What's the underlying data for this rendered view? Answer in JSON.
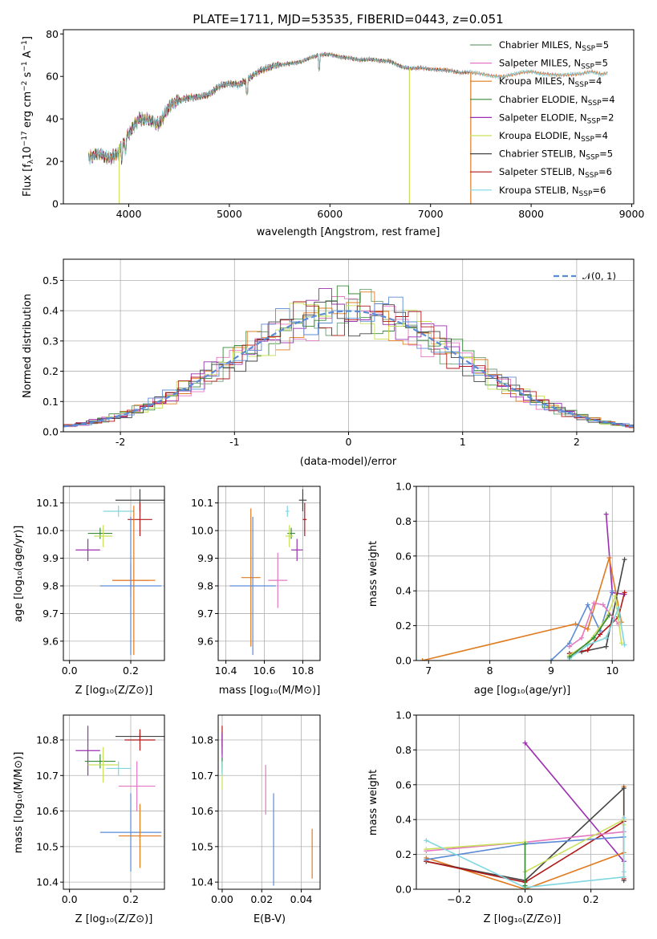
{
  "chart_data": [
    {
      "type": "line",
      "title": "PLATE=1711, MJD=53535, FIBERID=0443, z=0.051",
      "xlabel": "wavelength [Angstrom, rest frame]",
      "ylabel": "Flux [f_λ10^-17 erg cm^-2 s^-1 A^-1]",
      "xlim": [
        3350,
        9020
      ],
      "ylim": [
        0,
        82
      ],
      "xticks": [
        4000,
        5000,
        6000,
        7000,
        8000,
        9000
      ],
      "yticks": [
        0,
        20,
        40,
        60,
        80
      ],
      "legend_position": "upper-right",
      "series": [
        {
          "name": "Chabrier MILES, N_SSP=5",
          "color": "#6fa078",
          "end": 8760
        },
        {
          "name": "Salpeter MILES, N_SSP=5",
          "color": "#e377c2",
          "end": 8760
        },
        {
          "name": "Kroupa MILES, N_SSP=4",
          "color": "#e07b1f",
          "end": 8760
        },
        {
          "name": "Chabrier ELODIE, N_SSP=4",
          "color": "#3a8a3a",
          "end": 6790
        },
        {
          "name": "Salpeter ELODIE, N_SSP=2",
          "color": "#9b2fb0",
          "end": 6790
        },
        {
          "name": "Kroupa ELODIE, N_SSP=4",
          "color": "#c8e05a",
          "end": 6790
        },
        {
          "name": "Chabrier STELIB, N_SSP=5",
          "color": "#444444",
          "end": 7400
        },
        {
          "name": "Salpeter STELIB, N_SSP=6",
          "color": "#b01818",
          "end": 7400
        },
        {
          "name": "Kroupa STELIB, N_SSP=6",
          "color": "#7fd6e0",
          "end": 8760
        }
      ],
      "data_note_points": [
        [
          3600,
          22
        ],
        [
          3700,
          25
        ],
        [
          3800,
          22
        ],
        [
          3900,
          23
        ],
        [
          3950,
          28
        ],
        [
          4000,
          32
        ],
        [
          4100,
          40
        ],
        [
          4200,
          41
        ],
        [
          4300,
          38
        ],
        [
          4400,
          45
        ],
        [
          4500,
          48
        ],
        [
          4600,
          50
        ],
        [
          4700,
          51
        ],
        [
          4800,
          52
        ],
        [
          4900,
          55
        ],
        [
          5000,
          56
        ],
        [
          5100,
          56
        ],
        [
          5200,
          60
        ],
        [
          5300,
          63
        ],
        [
          5400,
          64
        ],
        [
          5500,
          65
        ],
        [
          5600,
          66
        ],
        [
          5700,
          67
        ],
        [
          5800,
          69
        ],
        [
          5900,
          70
        ],
        [
          6000,
          70
        ],
        [
          6100,
          69
        ],
        [
          6200,
          69
        ],
        [
          6300,
          68
        ],
        [
          6400,
          68
        ],
        [
          6500,
          67
        ],
        [
          6600,
          67
        ],
        [
          6700,
          65
        ],
        [
          6800,
          64
        ],
        [
          6900,
          64
        ],
        [
          7000,
          63
        ],
        [
          7100,
          63
        ],
        [
          7200,
          63
        ],
        [
          7300,
          62
        ],
        [
          7400,
          62
        ],
        [
          7500,
          61
        ],
        [
          7600,
          60
        ],
        [
          7700,
          60
        ],
        [
          7800,
          61
        ],
        [
          7900,
          62
        ],
        [
          8000,
          62
        ],
        [
          8100,
          61
        ],
        [
          8200,
          61
        ],
        [
          8300,
          61
        ],
        [
          8400,
          61
        ],
        [
          8500,
          61
        ],
        [
          8600,
          62
        ],
        [
          8700,
          61
        ],
        [
          8760,
          62
        ]
      ]
    },
    {
      "type": "bar",
      "xlabel": "(data-model)/error",
      "ylabel": "Normed distribution",
      "xlim": [
        -2.5,
        2.5
      ],
      "ylim": [
        0,
        0.57
      ],
      "xticks": [
        -2,
        -1,
        0,
        1,
        2
      ],
      "yticks": [
        0.0,
        0.1,
        0.2,
        0.3,
        0.4,
        0.5
      ],
      "curve_label": "𝒩(0, 1)",
      "curve_color": "#5b8bd6"
    },
    {
      "type": "scatter",
      "xlabel": "Z [log10(Z/Z⊙)]",
      "ylabel": "age [log10(age/yr)]",
      "xlim": [
        -0.02,
        0.31
      ],
      "ylim": [
        9.53,
        10.16
      ],
      "xticks": [
        0.0,
        0.2
      ],
      "yticks": [
        9.6,
        9.7,
        9.8,
        9.9,
        10.0,
        10.1
      ],
      "points": [
        {
          "x": 0.23,
          "y": 10.11,
          "xerr": 0.08,
          "yerr": 0.04,
          "color": "#444444"
        },
        {
          "x": 0.23,
          "y": 10.04,
          "xerr": 0.04,
          "yerr": 0.06,
          "color": "#b01818"
        },
        {
          "x": 0.16,
          "y": 10.07,
          "xerr": 0.05,
          "yerr": 0.02,
          "color": "#7fd6e0"
        },
        {
          "x": 0.1,
          "y": 9.99,
          "xerr": 0.04,
          "yerr": 0.02,
          "color": "#3a8a3a"
        },
        {
          "x": 0.11,
          "y": 9.98,
          "xerr": 0.03,
          "yerr": 0.04,
          "color": "#c8e05a"
        },
        {
          "x": 0.06,
          "y": 9.93,
          "xerr": 0.04,
          "yerr": 0.04,
          "color": "#9b2fb0"
        },
        {
          "x": 0.2,
          "y": 9.82,
          "xerr": 0.06,
          "yerr": 0.06,
          "color": "#e377c2"
        },
        {
          "x": 0.21,
          "y": 9.82,
          "xerr": 0.07,
          "yerr": 0.27,
          "color": "#e07b1f"
        },
        {
          "x": 0.2,
          "y": 9.8,
          "xerr": 0.1,
          "yerr": 0.25,
          "color": "#5b8bd6"
        }
      ]
    },
    {
      "type": "scatter",
      "xlabel": "mass [log10(M/M⊙)]",
      "ylabel": "",
      "xlim": [
        10.36,
        10.89
      ],
      "ylim": [
        9.53,
        10.16
      ],
      "xticks": [
        10.4,
        10.6,
        10.8
      ],
      "yticks": [
        9.6,
        9.7,
        9.8,
        9.9,
        10.0,
        10.1
      ],
      "points": [
        {
          "x": 10.8,
          "y": 10.11,
          "xerr": 0.02,
          "yerr": 0.04,
          "color": "#444444"
        },
        {
          "x": 10.81,
          "y": 10.04,
          "xerr": 0.01,
          "yerr": 0.06,
          "color": "#b01818"
        },
        {
          "x": 10.72,
          "y": 10.07,
          "xerr": 0.01,
          "yerr": 0.02,
          "color": "#7fd6e0"
        },
        {
          "x": 10.74,
          "y": 9.99,
          "xerr": 0.02,
          "yerr": 0.02,
          "color": "#3a8a3a"
        },
        {
          "x": 10.73,
          "y": 9.98,
          "xerr": 0.02,
          "yerr": 0.04,
          "color": "#c8e05a"
        },
        {
          "x": 10.77,
          "y": 9.93,
          "xerr": 0.03,
          "yerr": 0.04,
          "color": "#9b2fb0"
        },
        {
          "x": 10.67,
          "y": 9.82,
          "xerr": 0.05,
          "yerr": 0.1,
          "color": "#e377c2"
        },
        {
          "x": 10.53,
          "y": 9.83,
          "xerr": 0.05,
          "yerr": 0.25,
          "color": "#e07b1f"
        },
        {
          "x": 10.54,
          "y": 9.8,
          "xerr": 0.12,
          "yerr": 0.25,
          "color": "#5b8bd6"
        }
      ]
    },
    {
      "type": "line",
      "xlabel": "age [log10(age/yr)]",
      "ylabel": "mass weight",
      "xlim": [
        6.8,
        10.35
      ],
      "ylim": [
        0,
        1.0
      ],
      "xticks": [
        7,
        8,
        9,
        10
      ],
      "yticks": [
        0.0,
        0.2,
        0.4,
        0.6,
        0.8,
        1.0
      ],
      "series": [
        {
          "color": "#9b2fb0",
          "x": [
            9.9,
            10.0,
            10.2
          ],
          "y": [
            0.84,
            0.39,
            0.38
          ]
        },
        {
          "color": "#e07b1f",
          "x": [
            6.9,
            9.4,
            9.6,
            9.95,
            10.15
          ],
          "y": [
            0.0,
            0.21,
            0.18,
            0.59,
            0.22
          ]
        },
        {
          "color": "#444444",
          "x": [
            9.3,
            9.5,
            9.9,
            10.2
          ],
          "y": [
            0.04,
            0.05,
            0.08,
            0.58
          ]
        },
        {
          "color": "#b01818",
          "x": [
            9.3,
            9.6,
            9.8,
            10.1,
            10.2
          ],
          "y": [
            0.04,
            0.06,
            0.15,
            0.25,
            0.39
          ]
        },
        {
          "color": "#5b8bd6",
          "x": [
            9.0,
            9.3,
            9.6,
            9.8,
            10.0
          ],
          "y": [
            0.0,
            0.1,
            0.32,
            0.17,
            0.4
          ]
        },
        {
          "color": "#e377c2",
          "x": [
            9.3,
            9.5,
            9.7,
            9.85,
            10.1
          ],
          "y": [
            0.08,
            0.13,
            0.33,
            0.32,
            0.21
          ]
        },
        {
          "color": "#c8e05a",
          "x": [
            9.3,
            9.6,
            9.9,
            10.05,
            10.15
          ],
          "y": [
            0.03,
            0.1,
            0.24,
            0.37,
            0.1
          ]
        },
        {
          "color": "#7fd6e0",
          "x": [
            9.3,
            9.6,
            9.9,
            10.1,
            10.2
          ],
          "y": [
            0.01,
            0.09,
            0.13,
            0.3,
            0.09
          ]
        },
        {
          "color": "#3a8a3a",
          "x": [
            9.3,
            9.7,
            9.95
          ],
          "y": [
            0.02,
            0.13,
            0.26
          ]
        }
      ]
    },
    {
      "type": "scatter",
      "xlabel": "Z [log10(Z/Z⊙)]",
      "ylabel": "mass [log10(M/M⊙)]",
      "xlim": [
        -0.02,
        0.31
      ],
      "ylim": [
        10.38,
        10.87
      ],
      "xticks": [
        0.0,
        0.2
      ],
      "yticks": [
        10.4,
        10.5,
        10.6,
        10.7,
        10.8
      ],
      "points": [
        {
          "x": 0.23,
          "y": 10.81,
          "xerr": 0.08,
          "yerr": 0.01,
          "color": "#444444"
        },
        {
          "x": 0.23,
          "y": 10.8,
          "xerr": 0.05,
          "yerr": 0.03,
          "color": "#b01818"
        },
        {
          "x": 0.06,
          "y": 10.77,
          "xerr": 0.04,
          "yerr": 0.07,
          "color": "#9b2fb0"
        },
        {
          "x": 0.1,
          "y": 10.74,
          "xerr": 0.05,
          "yerr": 0.02,
          "color": "#3a8a3a"
        },
        {
          "x": 0.16,
          "y": 10.72,
          "xerr": 0.04,
          "yerr": 0.02,
          "color": "#7fd6e0"
        },
        {
          "x": 0.11,
          "y": 10.73,
          "xerr": 0.05,
          "yerr": 0.05,
          "color": "#c8e05a"
        },
        {
          "x": 0.22,
          "y": 10.67,
          "xerr": 0.06,
          "yerr": 0.07,
          "color": "#e377c2"
        },
        {
          "x": 0.2,
          "y": 10.54,
          "xerr": 0.1,
          "yerr": 0.11,
          "color": "#5b8bd6"
        },
        {
          "x": 0.23,
          "y": 10.53,
          "xerr": 0.07,
          "yerr": 0.09,
          "color": "#e07b1f"
        }
      ]
    },
    {
      "type": "scatter",
      "xlabel": "E(B-V)",
      "ylabel": "",
      "xlim": [
        -0.002,
        0.0495
      ],
      "ylim": [
        10.38,
        10.87
      ],
      "xticks": [
        0.0,
        0.02,
        0.04
      ],
      "yticks": [
        10.4,
        10.5,
        10.6,
        10.7,
        10.8
      ],
      "points": [
        {
          "x": 0.0,
          "y": 10.81,
          "yerr": 0.03,
          "color": "#b01818"
        },
        {
          "x": 0.0,
          "y": 10.79,
          "yerr": 0.03,
          "color": "#444444"
        },
        {
          "x": 0.0,
          "y": 10.77,
          "yerr": 0.05,
          "color": "#9b2fb0"
        },
        {
          "x": 0.0,
          "y": 10.73,
          "yerr": 0.02,
          "color": "#3a8a3a"
        },
        {
          "x": 0.0,
          "y": 10.7,
          "yerr": 0.04,
          "color": "#c8e05a"
        },
        {
          "x": 0.0,
          "y": 10.72,
          "yerr": 0.02,
          "color": "#7fd6e0"
        },
        {
          "x": 0.022,
          "y": 10.66,
          "yerr": 0.07,
          "color": "#e377c2"
        },
        {
          "x": 0.026,
          "y": 10.52,
          "yerr": 0.13,
          "color": "#5b8bd6"
        },
        {
          "x": 0.0455,
          "y": 10.48,
          "yerr": 0.07,
          "color": "#e07b1f"
        }
      ]
    },
    {
      "type": "line",
      "xlabel": "Z [log10(Z/Z⊙)]",
      "ylabel": "mass weight",
      "xlim": [
        -0.33,
        0.33
      ],
      "ylim": [
        0,
        1.0
      ],
      "xticks": [
        -0.2,
        0.0,
        0.2
      ],
      "yticks": [
        0.0,
        0.2,
        0.4,
        0.6,
        0.8,
        1.0
      ],
      "series": [
        {
          "color": "#9b2fb0",
          "x": [
            0.0,
            0.3
          ],
          "y": [
            0.84,
            0.16
          ]
        },
        {
          "color": "#e07b1f",
          "x": [
            -0.3,
            0.0,
            0.3,
            0.3
          ],
          "y": [
            0.18,
            0.0,
            0.21,
            0.59
          ]
        },
        {
          "color": "#444444",
          "x": [
            -0.3,
            0.0,
            0.3,
            0.3
          ],
          "y": [
            0.16,
            0.05,
            0.58,
            0.05
          ]
        },
        {
          "color": "#b01818",
          "x": [
            -0.3,
            0.0,
            0.3,
            0.3
          ],
          "y": [
            0.16,
            0.04,
            0.39,
            0.06
          ]
        },
        {
          "color": "#5b8bd6",
          "x": [
            -0.3,
            0.0,
            0.3
          ],
          "y": [
            0.17,
            0.26,
            0.3
          ]
        },
        {
          "color": "#e377c2",
          "x": [
            -0.3,
            0.0,
            0.3
          ],
          "y": [
            0.22,
            0.27,
            0.33
          ]
        },
        {
          "color": "#c8e05a",
          "x": [
            -0.3,
            0.0,
            0.0,
            0.3,
            0.3
          ],
          "y": [
            0.23,
            0.27,
            0.1,
            0.4,
            0.37
          ]
        },
        {
          "color": "#7fd6e0",
          "x": [
            -0.3,
            0.0,
            0.3,
            0.3,
            0.3
          ],
          "y": [
            0.28,
            0.01,
            0.07,
            0.41,
            0.1
          ]
        },
        {
          "color": "#3a8a3a",
          "x": [
            0.0,
            0.0
          ],
          "y": [
            0.02,
            0.26
          ]
        }
      ]
    }
  ]
}
